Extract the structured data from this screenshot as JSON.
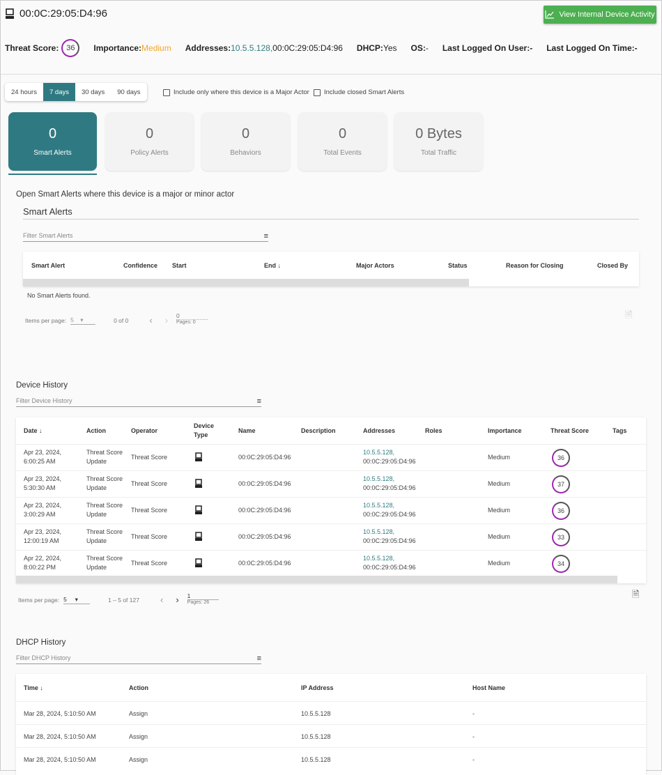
{
  "header": {
    "title": "00:0C:29:05:D4:96",
    "activity_button": "View Internal Device Activity",
    "threat_score_label": "Threat Score:",
    "threat_score": "36",
    "importance_label": "Importance:",
    "importance": "Medium",
    "addresses_label": "Addresses:",
    "address_ip": "10.5.5.128,",
    "address_mac": " 00:0C:29:05:D4:96",
    "dhcp_label": "DHCP:",
    "dhcp": "Yes",
    "os_label": "OS:",
    "os": "-",
    "user_label": "Last Logged On User:",
    "user": " -",
    "time_label": "Last Logged On Time:",
    "time": "-"
  },
  "ranges": [
    "24 hours",
    "7 days",
    "30 days",
    "90 days"
  ],
  "selected_range": "7 days",
  "checkboxes": [
    "Include only where this device is a Major Actor",
    "Include closed Smart Alerts"
  ],
  "cards": [
    {
      "value": "0",
      "label": "Smart Alerts"
    },
    {
      "value": "0",
      "label": "Policy Alerts"
    },
    {
      "value": "0",
      "label": "Behaviors"
    },
    {
      "value": "0",
      "label": "Total Events"
    },
    {
      "value": "0 Bytes",
      "label": "Total Traffic"
    }
  ],
  "smart": {
    "intro": "Open Smart Alerts where this device is a major or minor actor",
    "title": "Smart Alerts",
    "filter": "Filter Smart Alerts",
    "columns": [
      "Smart Alert",
      "Confidence",
      "Start",
      "End ↓",
      "Major Actors",
      "Status",
      "Reason for Closing",
      "Closed By"
    ],
    "empty": "No Smart Alerts found.",
    "items_label": "Items per page:",
    "per_page": "5",
    "range": "0 of 0",
    "page": "0",
    "pages": "Pages: 0"
  },
  "history": {
    "title": "Device History",
    "filter": "Filter Device History",
    "columns": [
      "Date ↓",
      "Action",
      "Operator",
      "Device Type",
      "Name",
      "Description",
      "Addresses",
      "Roles",
      "Importance",
      "Threat Score",
      "Tags"
    ],
    "rows": [
      {
        "date1": "Apr 23, 2024,",
        "date2": "6:00:25 AM",
        "action1": "Threat Score",
        "action2": "Update",
        "operator": "Threat Score",
        "name": "00:0C:29:05:D4:96",
        "ip": "10.5.5.128,",
        "mac": "00:0C:29:05:D4:96",
        "importance": "Medium",
        "score": "36"
      },
      {
        "date1": "Apr 23, 2024,",
        "date2": "5:30:30 AM",
        "action1": "Threat Score",
        "action2": "Update",
        "operator": "Threat Score",
        "name": "00:0C:29:05:D4:96",
        "ip": "10.5.5.128,",
        "mac": "00:0C:29:05:D4:96",
        "importance": "Medium",
        "score": "37"
      },
      {
        "date1": "Apr 23, 2024,",
        "date2": "3:00:29 AM",
        "action1": "Threat Score",
        "action2": "Update",
        "operator": "Threat Score",
        "name": "00:0C:29:05:D4:96",
        "ip": "10.5.5.128,",
        "mac": "00:0C:29:05:D4:96",
        "importance": "Medium",
        "score": "36"
      },
      {
        "date1": "Apr 23, 2024,",
        "date2": "12:00:19 AM",
        "action1": "Threat Score",
        "action2": "Update",
        "operator": "Threat Score",
        "name": "00:0C:29:05:D4:96",
        "ip": "10.5.5.128,",
        "mac": "00:0C:29:05:D4:96",
        "importance": "Medium",
        "score": "33"
      },
      {
        "date1": "Apr 22, 2024,",
        "date2": "8:00:22 PM",
        "action1": "Threat Score",
        "action2": "Update",
        "operator": "Threat Score",
        "name": "00:0C:29:05:D4:96",
        "ip": "10.5.5.128,",
        "mac": "00:0C:29:05:D4:96",
        "importance": "Medium",
        "score": "34"
      }
    ],
    "items_label": "Items per page:",
    "per_page": "5",
    "range": "1 – 5 of 127",
    "page": "1",
    "pages": "Pages: 26"
  },
  "dhcp": {
    "title": "DHCP History",
    "filter": "Filter DHCP History",
    "columns": [
      "Time ↓",
      "Action",
      "IP Address",
      "Host Name"
    ],
    "rows": [
      {
        "time": "Mar 28, 2024, 5:10:50 AM",
        "action": "Assign",
        "ip": "10.5.5.128",
        "host": "-"
      },
      {
        "time": "Mar 28, 2024, 5:10:50 AM",
        "action": "Assign",
        "ip": "10.5.5.128",
        "host": "-"
      },
      {
        "time": "Mar 28, 2024, 5:10:50 AM",
        "action": "Assign",
        "ip": "10.5.5.128",
        "host": "-"
      }
    ]
  }
}
